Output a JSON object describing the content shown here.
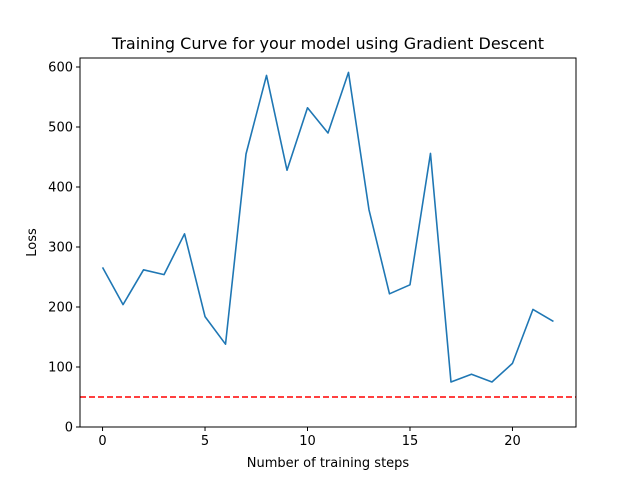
{
  "chart_data": {
    "type": "line",
    "title": "Training Curve for your model using Gradient Descent",
    "xlabel": "Number of training steps",
    "ylabel": "Loss",
    "xlim": [
      -1.1,
      23.1
    ],
    "ylim": [
      0,
      615
    ],
    "xticks": [
      0,
      5,
      10,
      15,
      20
    ],
    "yticks": [
      0,
      100,
      200,
      300,
      400,
      500,
      600
    ],
    "grid": false,
    "series": [
      {
        "color": "#1f77b4",
        "x": [
          0,
          1,
          2,
          3,
          4,
          5,
          6,
          7,
          8,
          9,
          10,
          11,
          12,
          13,
          14,
          15,
          16,
          17,
          18,
          19,
          20,
          21,
          22
        ],
        "y": [
          266,
          204,
          262,
          254,
          322,
          184,
          138,
          455,
          586,
          428,
          532,
          490,
          591,
          362,
          222,
          237,
          456,
          75,
          88,
          75,
          106,
          196,
          176
        ]
      }
    ],
    "reference_line": {
      "y": 50,
      "color": "#ff0000",
      "style": "dashed"
    }
  }
}
